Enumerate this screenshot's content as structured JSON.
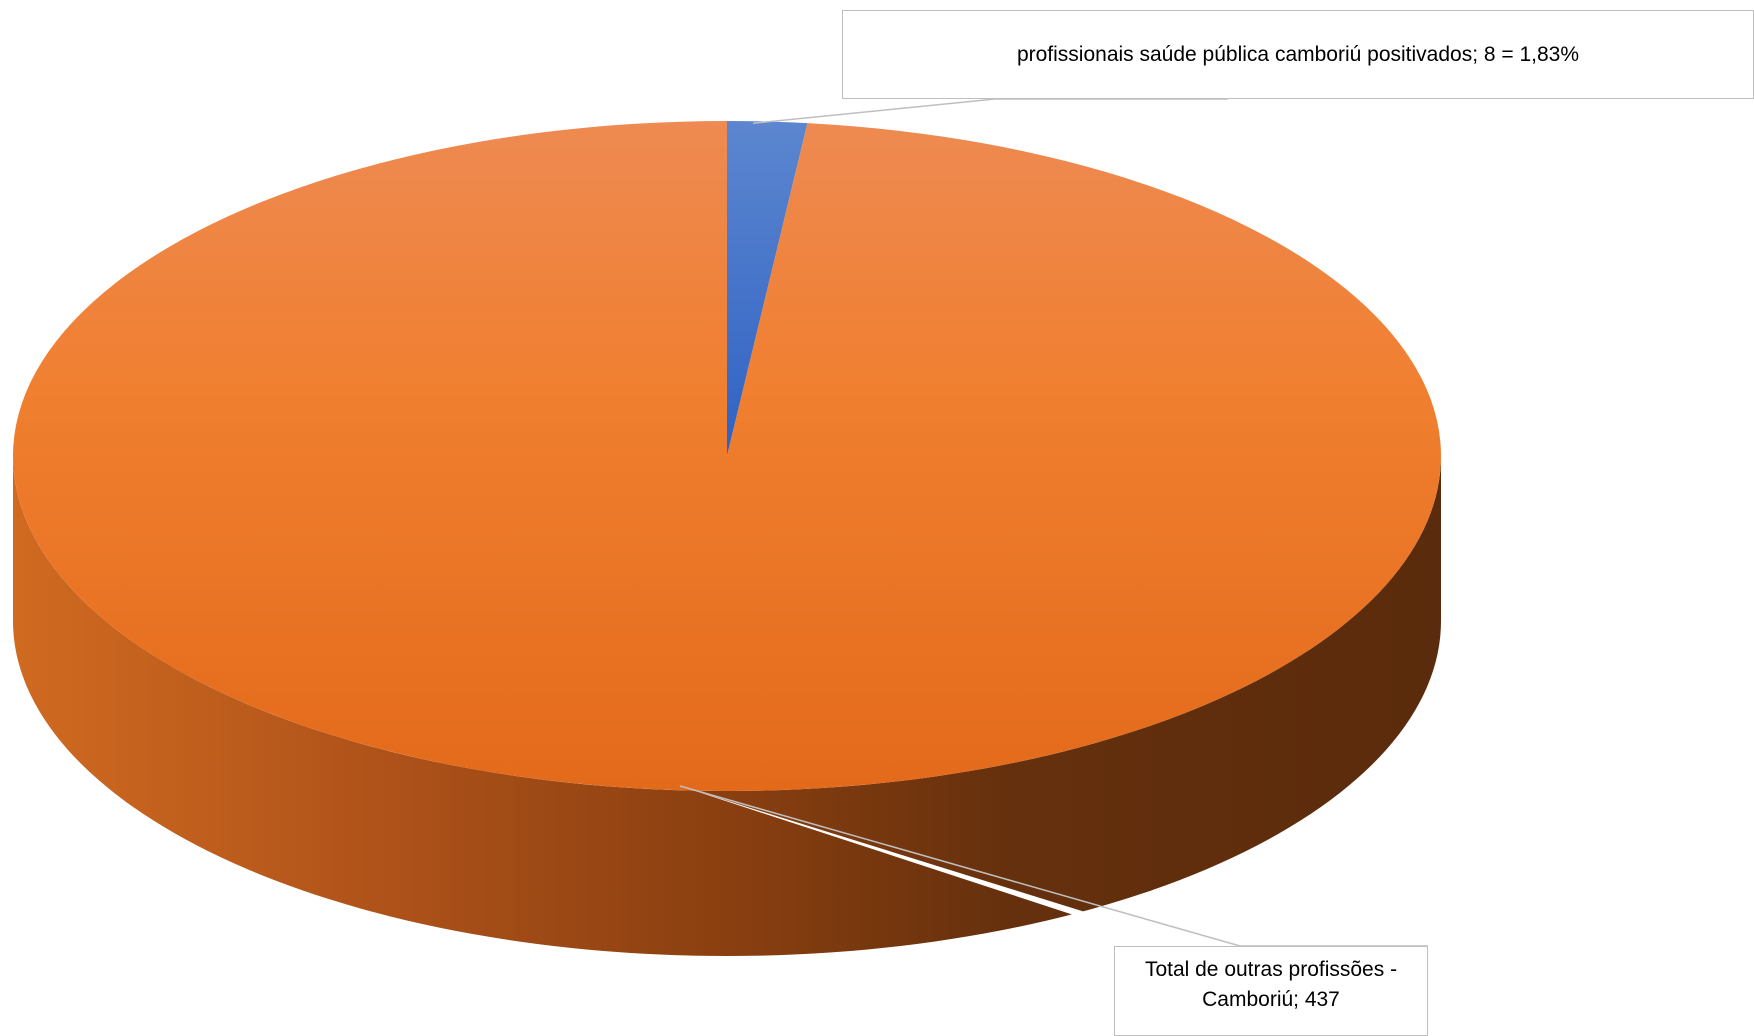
{
  "chart_data": {
    "type": "pie",
    "style": "3d",
    "slices": [
      {
        "label": "profissionais saúde pública camboriú positivados",
        "value": 8,
        "percent_label": "1,83%",
        "data_label": "profissionais saúde pública camboriú positivados; 8 = 1,83%",
        "color": "#4472C4"
      },
      {
        "label": "Total de outras profissões - Camboriú",
        "value": 437,
        "data_label_line1": "Total de outras profissões -",
        "data_label_line2": "Camboriú; 437",
        "color": "#ED7D31"
      }
    ],
    "legend": "none"
  }
}
